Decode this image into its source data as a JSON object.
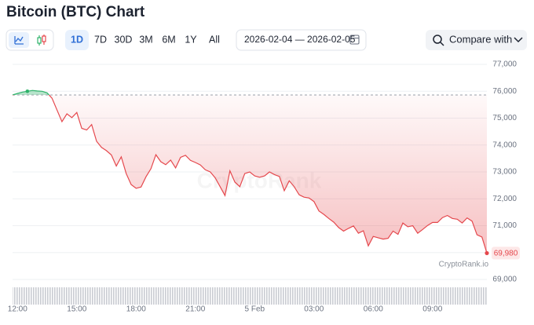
{
  "title": "Bitcoin (BTC) Chart",
  "ranges": [
    "1D",
    "7D",
    "30D",
    "3M",
    "6M",
    "1Y",
    "All"
  ],
  "date_range": "2026-02-04 — 2026-02-05",
  "compare": "Compare with",
  "watermark": "CryptoRank",
  "source": "CryptoRank.io",
  "chart_data": {
    "type": "line",
    "categories": [
      null,
      "12:00",
      null,
      null,
      null,
      null,
      null,
      null,
      null,
      null,
      null,
      null,
      null,
      "15:00",
      null,
      null,
      null,
      null,
      null,
      null,
      null,
      null,
      null,
      null,
      null,
      "18:00",
      null,
      null,
      null,
      null,
      null,
      null,
      null,
      null,
      null,
      null,
      null,
      "21:00",
      null,
      null,
      null,
      null,
      null,
      null,
      null,
      null,
      null,
      null,
      null,
      "5 Feb",
      null,
      null,
      null,
      null,
      null,
      null,
      null,
      null,
      null,
      null,
      null,
      "03:00",
      null,
      null,
      null,
      null,
      null,
      null,
      null,
      null,
      null,
      null,
      null,
      "06:00",
      null,
      null,
      null,
      null,
      null,
      null,
      null,
      null,
      null,
      null,
      null,
      "09:00",
      null,
      null,
      null,
      null,
      null,
      null,
      null,
      null,
      null,
      null,
      null
    ],
    "values": [
      75860,
      75920,
      75970,
      76000,
      76030,
      76010,
      76000,
      75940,
      75740,
      75300,
      74870,
      75160,
      75020,
      75210,
      74620,
      74560,
      74760,
      74140,
      73910,
      73790,
      73630,
      73220,
      73560,
      72940,
      72530,
      72390,
      72440,
      72820,
      73120,
      73640,
      73380,
      73270,
      73440,
      73150,
      73540,
      73620,
      73430,
      73350,
      73260,
      73080,
      73000,
      72780,
      72450,
      72120,
      73040,
      72620,
      72450,
      72940,
      73000,
      72850,
      72800,
      72850,
      73000,
      72900,
      72830,
      72300,
      72670,
      72450,
      72150,
      72060,
      72030,
      71900,
      71550,
      71420,
      71270,
      71130,
      70930,
      70800,
      70900,
      70990,
      70720,
      70810,
      70250,
      70600,
      70550,
      70500,
      70530,
      70800,
      70680,
      71100,
      70960,
      71000,
      70720,
      70860,
      71010,
      71120,
      71120,
      71300,
      71380,
      71270,
      71240,
      71100,
      71290,
      71170,
      70660,
      70580,
      69980
    ],
    "last_label": "69,980",
    "reference": 75860,
    "up_color": "#2fb36b",
    "down_color": "#e5484d",
    "ylim": [
      69000,
      77000
    ],
    "yticks": [
      {
        "value": 69000,
        "label": "69,000"
      },
      {
        "value": 70000,
        "label": "70,000"
      },
      {
        "value": 71000,
        "label": "71,000"
      },
      {
        "value": 72000,
        "label": "72,000"
      },
      {
        "value": 73000,
        "label": "73,000"
      },
      {
        "value": 74000,
        "label": "74,000"
      },
      {
        "value": 75000,
        "label": "75,000"
      },
      {
        "value": 76000,
        "label": "76,000"
      },
      {
        "value": 77000,
        "label": "77,000"
      }
    ],
    "grid": true
  }
}
